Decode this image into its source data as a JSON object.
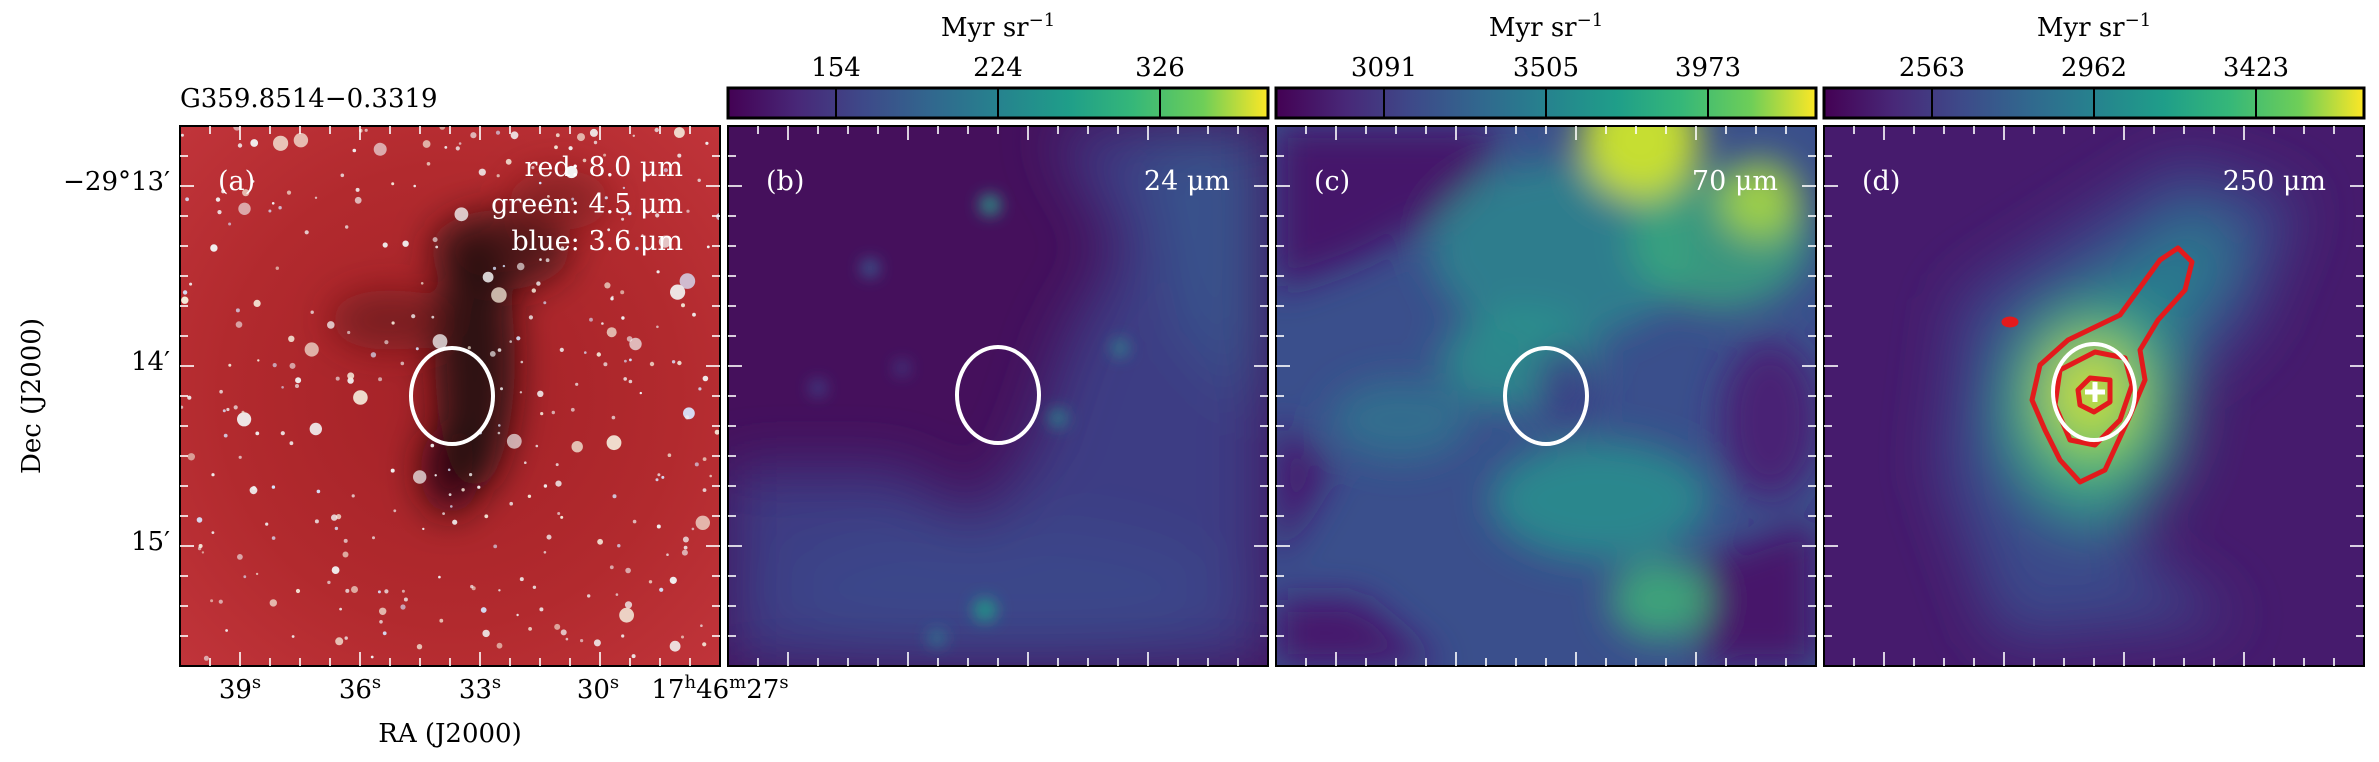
{
  "source_name": "G359.8514−0.3319",
  "axes": {
    "ylabel": "Dec (J2000)",
    "xlabel": "RA (J2000)",
    "dec_ticks": [
      {
        "main": "−29°13′",
        "sup": ""
      },
      {
        "main": "14′",
        "sup": ""
      },
      {
        "main": "15′",
        "sup": ""
      }
    ],
    "ra_ticks": [
      {
        "num": "39",
        "sup": "s",
        "pre": ""
      },
      {
        "num": "36",
        "sup": "s",
        "pre": ""
      },
      {
        "num": "33",
        "sup": "s",
        "pre": ""
      },
      {
        "num": "30",
        "sup": "s",
        "pre": ""
      },
      {
        "num": "27",
        "sup": "s",
        "pre": "17h46m"
      }
    ],
    "ra_last": {
      "h": "17",
      "m": "46",
      "s": "27"
    }
  },
  "panels": [
    {
      "id": "a",
      "label": "(a)",
      "legend": [
        "red: 8.0 μm",
        "green: 4.5 μm",
        "blue: 3.6 μm"
      ]
    },
    {
      "id": "b",
      "label": "(b)",
      "band": "24 μm"
    },
    {
      "id": "c",
      "label": "(c)",
      "band": "70 μm"
    },
    {
      "id": "d",
      "label": "(d)",
      "band": "250 μm"
    }
  ],
  "colorbars": [
    {
      "unit": "Myr sr⁻¹",
      "ticks": [
        "154",
        "224",
        "326"
      ]
    },
    {
      "unit": "Myr sr⁻¹",
      "ticks": [
        "3091",
        "3505",
        "3973"
      ]
    },
    {
      "unit": "Myr sr⁻¹",
      "ticks": [
        "2563",
        "2962",
        "3423"
      ]
    }
  ],
  "colors": {
    "ellipse": "#ffffff",
    "contour": "#e31a1c",
    "viridis_low": "#440154",
    "viridis_mid": "#21918c",
    "viridis_high": "#fde725",
    "rgb_background": "#b0282c"
  }
}
